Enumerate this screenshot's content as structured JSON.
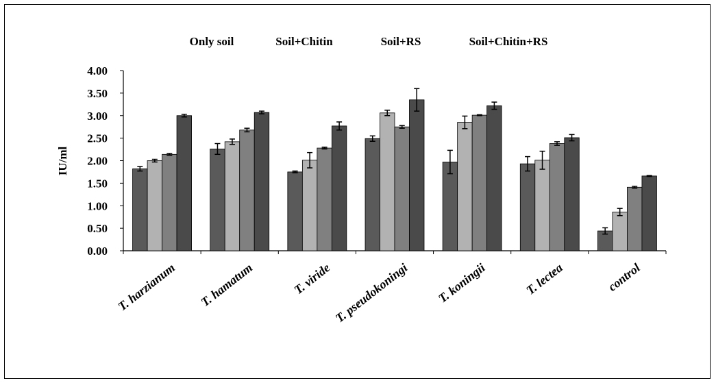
{
  "chart_data": {
    "type": "bar",
    "title": "",
    "xlabel": "",
    "ylabel": "IU/ml",
    "ylim": [
      0,
      4
    ],
    "yticks": [
      "0.00",
      "0.50",
      "1.00",
      "1.50",
      "2.00",
      "2.50",
      "3.00",
      "3.50",
      "4.00"
    ],
    "grid": false,
    "legend_position": "top",
    "categories": [
      "T. harzianum",
      "T. hamatum",
      "T. viride",
      "T. pseudokoningi",
      "T. koningii",
      "T. lectea",
      "control"
    ],
    "series": [
      {
        "name": "Only soil",
        "color": "#5a5a5a",
        "values": [
          1.82,
          2.26,
          1.75,
          2.49,
          1.97,
          1.93,
          0.44
        ],
        "errors": [
          0.05,
          0.12,
          0.02,
          0.06,
          0.26,
          0.16,
          0.07
        ]
      },
      {
        "name": "Soil+Chitin",
        "color": "#b2b2b2",
        "values": [
          2.0,
          2.42,
          2.01,
          3.06,
          2.85,
          2.01,
          0.86
        ],
        "errors": [
          0.03,
          0.06,
          0.17,
          0.06,
          0.14,
          0.2,
          0.08
        ]
      },
      {
        "name": "Soil+RS",
        "color": "#808080",
        "values": [
          2.14,
          2.68,
          2.28,
          2.75,
          3.01,
          2.38,
          1.41
        ],
        "errors": [
          0.02,
          0.04,
          0.02,
          0.03,
          0.01,
          0.04,
          0.02
        ]
      },
      {
        "name": "Soil+Chitin+RS",
        "color": "#4a4a4a",
        "values": [
          3.0,
          3.07,
          2.77,
          3.35,
          3.22,
          2.51,
          1.66
        ],
        "errors": [
          0.03,
          0.03,
          0.09,
          0.25,
          0.08,
          0.07,
          0.01
        ]
      }
    ]
  }
}
